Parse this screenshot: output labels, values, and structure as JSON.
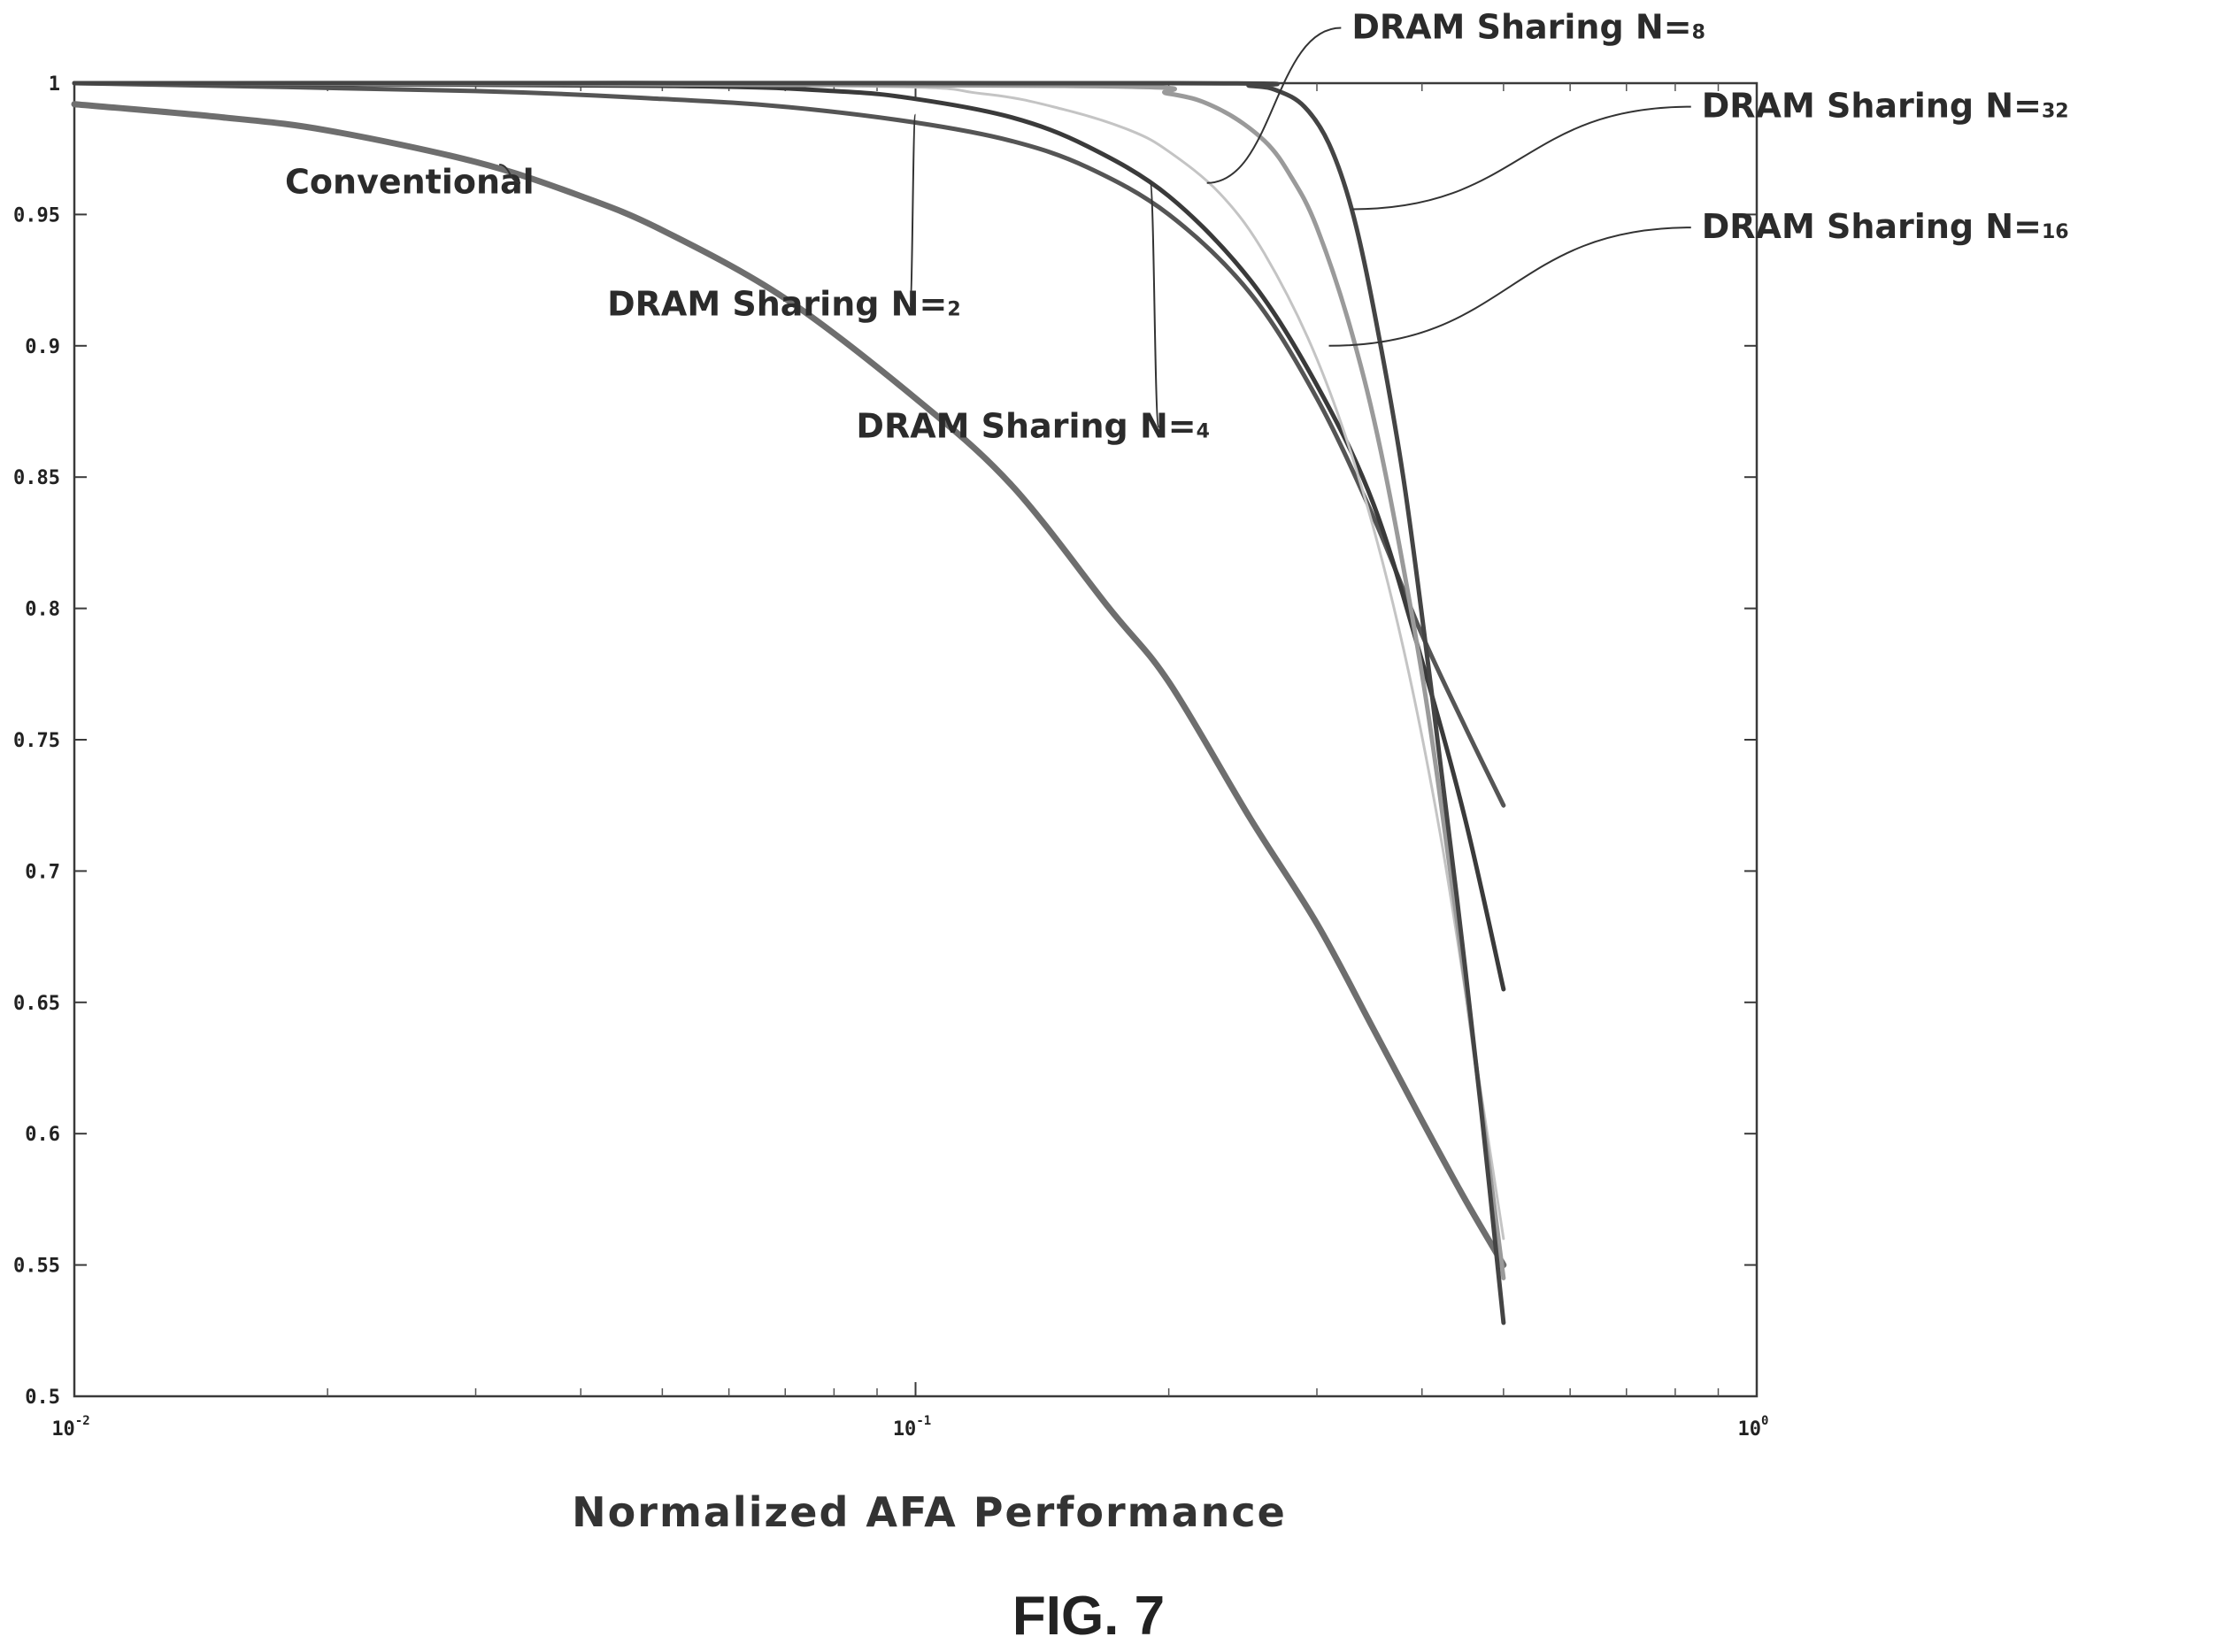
{
  "chart_data": {
    "type": "line",
    "title": "",
    "xlabel": "Normalized AFA Performance",
    "ylabel": "",
    "figure_caption": "FIG. 7",
    "xscale": "log",
    "xlim": [
      0.01,
      1
    ],
    "ylim": [
      0.5,
      1
    ],
    "grid": false,
    "legend": "none",
    "x_ticks": [
      {
        "value": 0.01,
        "base": "10",
        "exp": "-2"
      },
      {
        "value": 0.1,
        "base": "10",
        "exp": "-1"
      },
      {
        "value": 1,
        "base": "10",
        "exp": "0"
      }
    ],
    "y_ticks": [
      "0.5",
      "0.55",
      "0.6",
      "0.65",
      "0.7",
      "0.75",
      "0.8",
      "0.85",
      "0.9",
      "0.95",
      "1"
    ],
    "series": [
      {
        "name": "Conventional",
        "color": "#6e6e6e",
        "x": [
          0.01,
          0.015,
          0.02,
          0.03,
          0.04,
          0.05,
          0.07,
          0.1,
          0.13,
          0.17,
          0.2,
          0.25,
          0.3,
          0.35,
          0.4,
          0.45,
          0.5
        ],
        "y": [
          0.992,
          0.987,
          0.982,
          0.97,
          0.957,
          0.944,
          0.918,
          0.88,
          0.847,
          0.8,
          0.772,
          0.72,
          0.68,
          0.64,
          0.605,
          0.575,
          0.55
        ]
      },
      {
        "name": "DRAM Sharing N=2",
        "color": "#555555",
        "x": [
          0.01,
          0.03,
          0.05,
          0.07,
          0.1,
          0.13,
          0.16,
          0.2,
          0.25,
          0.3,
          0.35,
          0.4,
          0.45,
          0.5
        ],
        "y": [
          1.0,
          0.997,
          0.994,
          0.991,
          0.985,
          0.978,
          0.968,
          0.95,
          0.92,
          0.88,
          0.835,
          0.79,
          0.755,
          0.725
        ]
      },
      {
        "name": "DRAM Sharing N=4",
        "color": "#3a3a3a",
        "x": [
          0.01,
          0.05,
          0.08,
          0.1,
          0.13,
          0.16,
          0.2,
          0.25,
          0.3,
          0.35,
          0.4,
          0.45,
          0.5
        ],
        "y": [
          1.0,
          0.999,
          0.997,
          0.994,
          0.987,
          0.976,
          0.957,
          0.925,
          0.885,
          0.84,
          0.78,
          0.72,
          0.655
        ]
      },
      {
        "name": "DRAM Sharing N=8",
        "color": "#c4c4c4",
        "x": [
          0.01,
          0.08,
          0.12,
          0.15,
          0.18,
          0.2,
          0.23,
          0.26,
          0.3,
          0.34,
          0.38,
          0.42,
          0.46,
          0.5
        ],
        "y": [
          1.0,
          0.999,
          0.996,
          0.99,
          0.982,
          0.974,
          0.958,
          0.935,
          0.895,
          0.845,
          0.785,
          0.715,
          0.635,
          0.56
        ]
      },
      {
        "name": "DRAM Sharing N=16",
        "color": "#9a9a9a",
        "x": [
          0.01,
          0.15,
          0.2,
          0.23,
          0.26,
          0.28,
          0.3,
          0.33,
          0.36,
          0.4,
          0.43,
          0.46,
          0.5
        ],
        "y": [
          1.0,
          0.999,
          0.996,
          0.99,
          0.978,
          0.964,
          0.945,
          0.905,
          0.855,
          0.775,
          0.705,
          0.635,
          0.545
        ]
      },
      {
        "name": "DRAM Sharing N=32",
        "color": "#444444",
        "x": [
          0.01,
          0.2,
          0.25,
          0.27,
          0.29,
          0.31,
          0.33,
          0.35,
          0.38,
          0.41,
          0.44,
          0.47,
          0.5
        ],
        "y": [
          1.0,
          1.0,
          0.999,
          0.997,
          0.991,
          0.977,
          0.952,
          0.915,
          0.85,
          0.77,
          0.69,
          0.61,
          0.528
        ]
      }
    ],
    "annotations": [
      {
        "series": "Conventional",
        "main": "Conventional",
        "sub": "",
        "text_x": 0.0178,
        "text_y": 0.958,
        "anchor_x": 0.032,
        "anchor_y": 0.969,
        "side": "left"
      },
      {
        "series": "DRAM Sharing N=2",
        "main": "DRAM Sharing N=",
        "sub": "2",
        "text_x": 0.043,
        "text_y": 0.9115,
        "anchor_x": 0.1,
        "anchor_y": 0.988,
        "side": "left"
      },
      {
        "series": "DRAM Sharing N=4",
        "main": "DRAM Sharing N=",
        "sub": "4",
        "text_x": 0.085,
        "text_y": 0.865,
        "anchor_x": 0.19,
        "anchor_y": 0.962,
        "side": "left"
      },
      {
        "series": "DRAM Sharing N=8",
        "main": "DRAM Sharing N=",
        "sub": "8",
        "text_x": 0.33,
        "text_y": 1.017,
        "anchor_x": 0.222,
        "anchor_y": 0.962,
        "side": "right"
      },
      {
        "series": "DRAM Sharing N=32",
        "main": "DRAM Sharing N=",
        "sub": "32",
        "text_x": 0.86,
        "text_y": 0.987,
        "anchor_x": 0.33,
        "anchor_y": 0.952,
        "side": "right"
      },
      {
        "series": "DRAM Sharing N=16",
        "main": "DRAM Sharing N=",
        "sub": "16",
        "text_x": 0.86,
        "text_y": 0.941,
        "anchor_x": 0.31,
        "anchor_y": 0.9,
        "side": "right"
      }
    ]
  }
}
